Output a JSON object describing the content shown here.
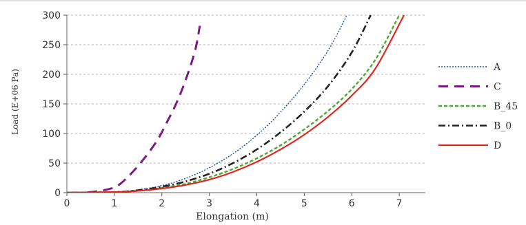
{
  "chart_data": {
    "type": "line",
    "xlabel": "Elongation (m)",
    "ylabel": "Load (E+06 Pa)",
    "xlim": [
      0,
      7.55
    ],
    "ylim": [
      0,
      300
    ],
    "xticks": [
      "0",
      "1",
      "2",
      "3",
      "4",
      "5",
      "6",
      "7"
    ],
    "yticks": [
      "0",
      "50",
      "100",
      "150",
      "200",
      "250",
      "300"
    ],
    "grid": true,
    "legend_position": "right",
    "series": [
      {
        "name": "A",
        "color": "#1f4fa8",
        "style": "dotted",
        "x": [
          0,
          1,
          1.5,
          2,
          2.5,
          3,
          3.5,
          4,
          4.5,
          5,
          5.5,
          5.9
        ],
        "y": [
          0,
          1,
          5,
          12,
          24,
          42,
          66,
          97,
          136,
          183,
          240,
          300
        ]
      },
      {
        "name": "C",
        "color": "#7b1a85",
        "style": "dashed",
        "x": [
          0.1,
          0.5,
          1.0,
          1.3,
          1.6,
          1.9,
          2.1,
          2.3,
          2.5,
          2.7,
          2.8
        ],
        "y": [
          0,
          1,
          9,
          28,
          55,
          88,
          118,
          150,
          190,
          240,
          282
        ]
      },
      {
        "name": "B_45",
        "color": "#4fa832",
        "style": "short-dash",
        "x": [
          0,
          1,
          1.5,
          2,
          2.5,
          3,
          3.5,
          4,
          4.5,
          5,
          5.5,
          6,
          6.5,
          7.0
        ],
        "y": [
          0,
          1,
          3,
          8,
          15,
          26,
          40,
          58,
          80,
          107,
          138,
          175,
          225,
          300
        ]
      },
      {
        "name": "B_0",
        "color": "#222222",
        "style": "dash-dot",
        "x": [
          0,
          1,
          1.5,
          2,
          2.5,
          3,
          3.5,
          4,
          4.5,
          5,
          5.5,
          6,
          6.4
        ],
        "y": [
          0,
          1,
          4,
          10,
          19,
          32,
          50,
          73,
          102,
          137,
          180,
          237,
          300
        ]
      },
      {
        "name": "D",
        "color": "#e0271f",
        "style": "solid",
        "x": [
          0,
          1,
          1.5,
          2,
          2.5,
          3,
          3.5,
          4,
          4.5,
          5,
          5.5,
          6,
          6.5,
          7.1
        ],
        "y": [
          0,
          1,
          3,
          7,
          13,
          22,
          35,
          52,
          73,
          98,
          128,
          164,
          210,
          300
        ]
      }
    ]
  }
}
